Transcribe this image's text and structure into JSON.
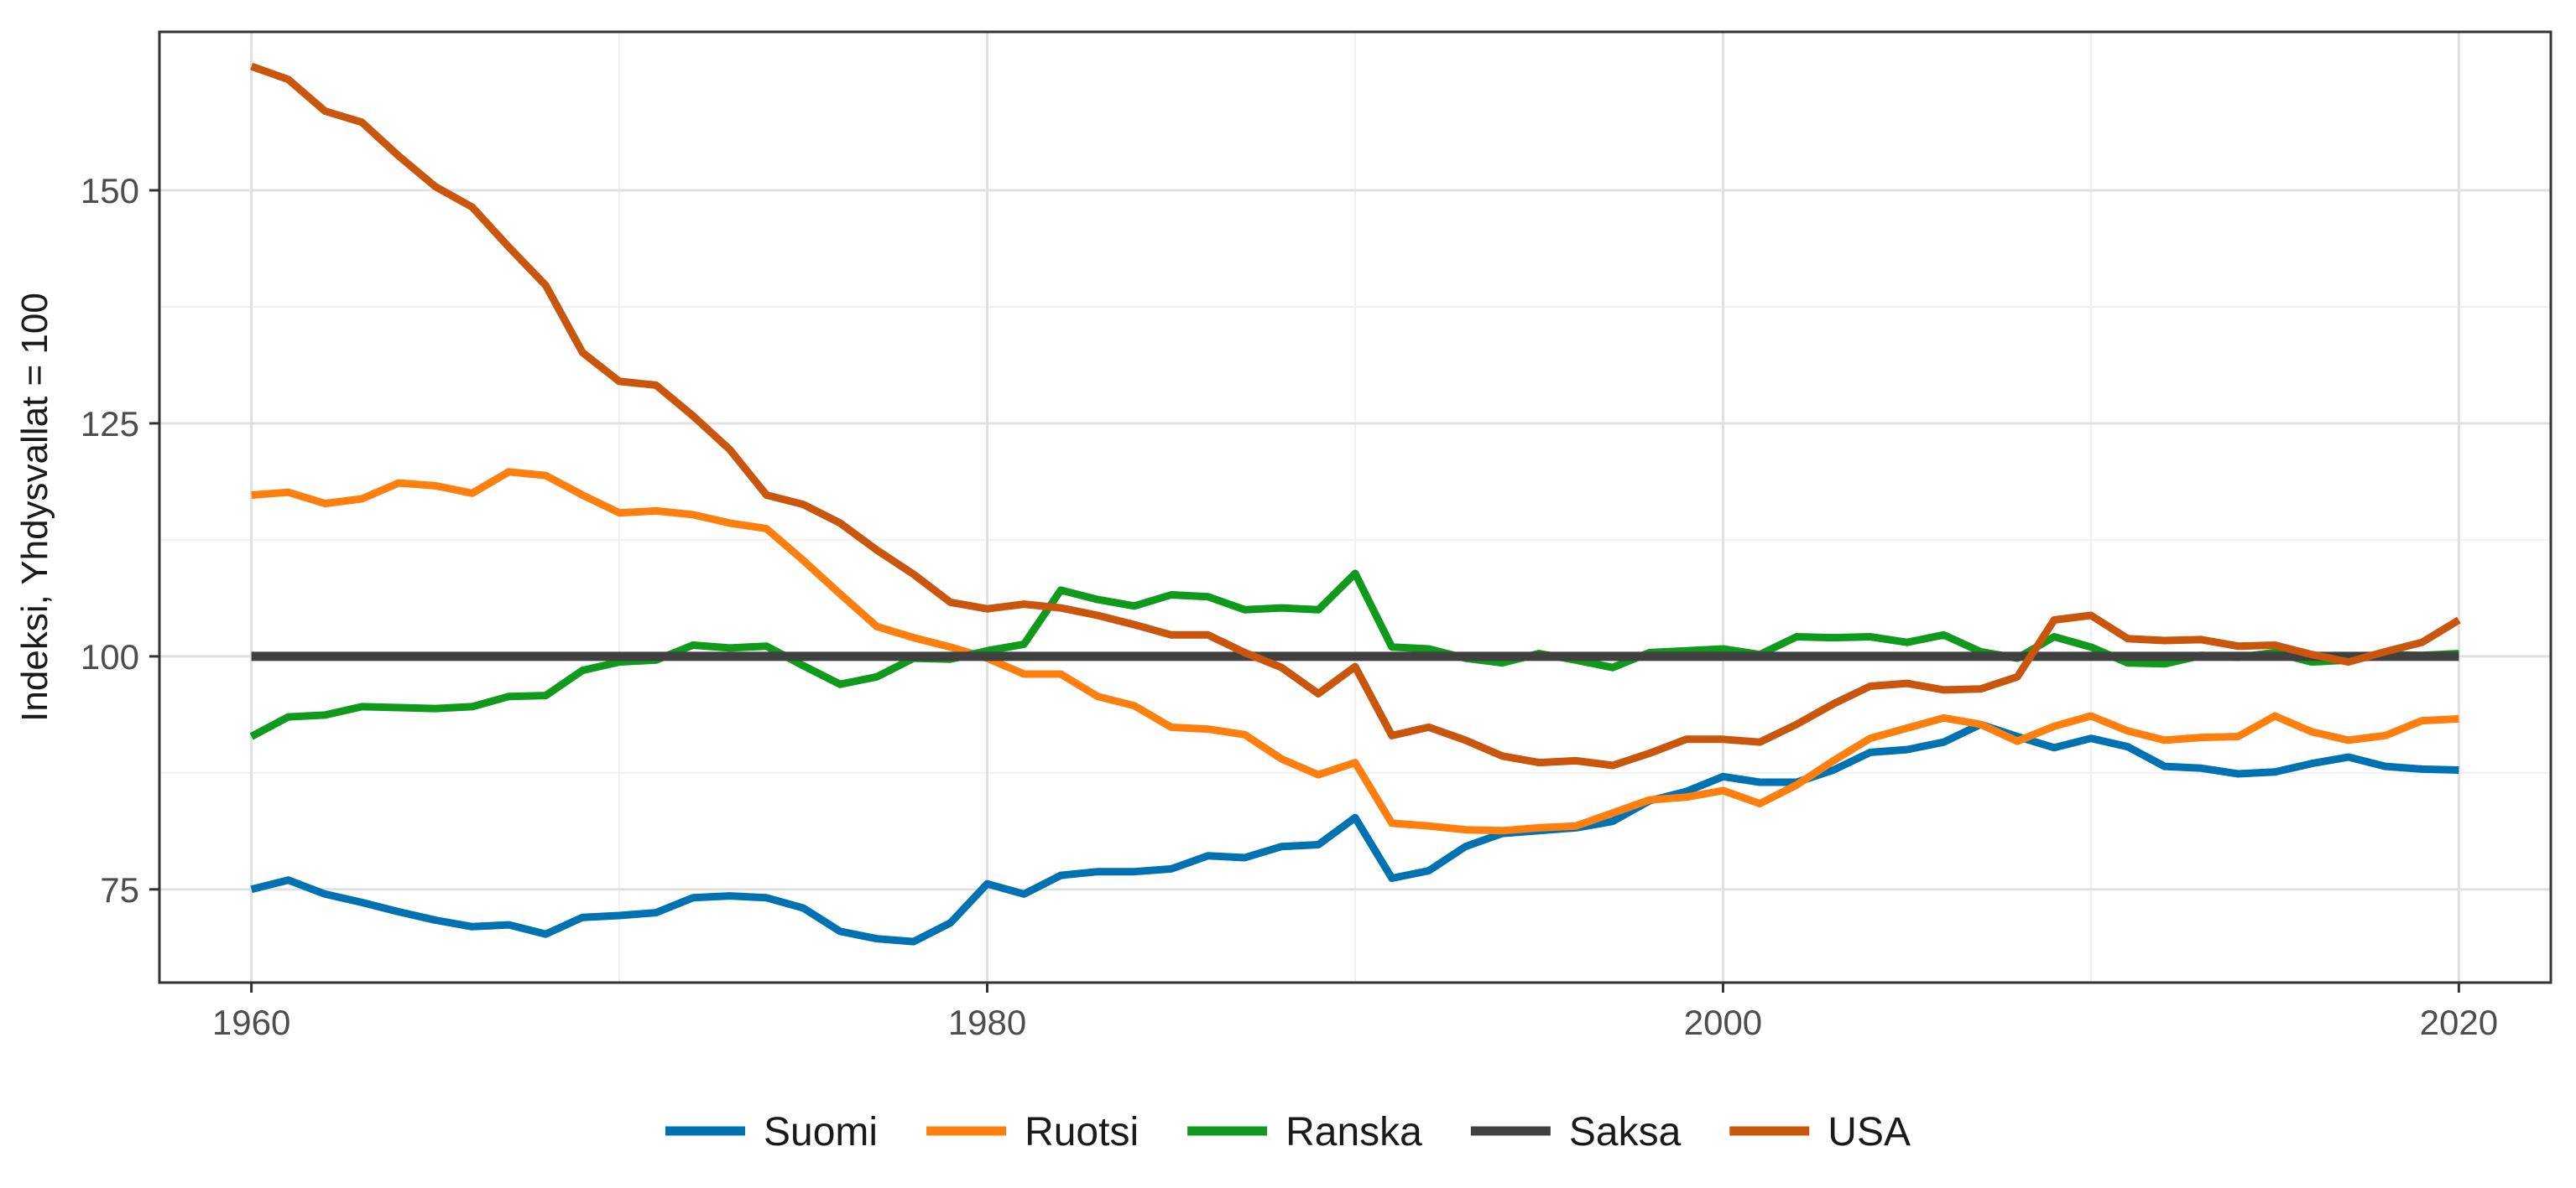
{
  "chart_data": {
    "type": "line",
    "ylabel": "Indeksi, Yhdysvallat = 100",
    "xlabel": "",
    "xlim": [
      1957.5,
      2022.5
    ],
    "ylim": [
      65,
      167
    ],
    "x_ticks": [
      1960,
      1980,
      2000,
      2020
    ],
    "y_ticks": [
      75,
      100,
      125,
      150
    ],
    "grid": true,
    "legend_position": "bottom",
    "x": [
      1960,
      1961,
      1962,
      1963,
      1964,
      1965,
      1966,
      1967,
      1968,
      1969,
      1970,
      1971,
      1972,
      1973,
      1974,
      1975,
      1976,
      1977,
      1978,
      1979,
      1980,
      1981,
      1982,
      1983,
      1984,
      1985,
      1986,
      1987,
      1988,
      1989,
      1990,
      1991,
      1992,
      1993,
      1994,
      1995,
      1996,
      1997,
      1998,
      1999,
      2000,
      2001,
      2002,
      2003,
      2004,
      2005,
      2006,
      2007,
      2008,
      2009,
      2010,
      2011,
      2012,
      2013,
      2014,
      2015,
      2016,
      2017,
      2018,
      2019,
      2020
    ],
    "series": [
      {
        "name": "Suomi",
        "color": "#0072b2",
        "values": [
          75,
          76,
          74.5,
          73.6,
          72.6,
          71.7,
          71,
          71.2,
          70.2,
          72,
          72.2,
          72.5,
          74.1,
          74.3,
          74.1,
          73,
          70.5,
          69.7,
          69.4,
          71.4,
          75.6,
          74.5,
          76.5,
          76.9,
          76.9,
          77.2,
          78.6,
          78.4,
          79.6,
          79.8,
          82.7,
          76.2,
          77,
          79.6,
          81,
          81.3,
          81.6,
          82.3,
          84.5,
          85.5,
          87.1,
          86.5,
          86.5,
          87.8,
          89.7,
          90,
          90.8,
          92.7,
          91.4,
          90.2,
          91.2,
          90.3,
          88.2,
          88,
          87.4,
          87.6,
          88.5,
          89.2,
          88.2,
          87.9,
          87.8
        ]
      },
      {
        "name": "Ruotsi",
        "color": "#ff7f0e",
        "values": [
          117.3,
          117.6,
          116.4,
          116.9,
          118.6,
          118.3,
          117.5,
          119.8,
          119.4,
          117.3,
          115.4,
          115.6,
          115.2,
          114.3,
          113.7,
          110.3,
          106.7,
          103.2,
          102,
          101,
          99.8,
          98.1,
          98.1,
          95.7,
          94.7,
          92.4,
          92.2,
          91.6,
          89,
          87.3,
          88.6,
          82.1,
          81.8,
          81.4,
          81.3,
          81.6,
          81.8,
          83.2,
          84.6,
          84.9,
          85.6,
          84.2,
          86.2,
          88.8,
          91.2,
          92.3,
          93.4,
          92.7,
          90.9,
          92.5,
          93.6,
          92,
          91,
          91.3,
          91.4,
          93.6,
          91.9,
          91,
          91.5,
          93.1,
          93.3
        ]
      },
      {
        "name": "Ranska",
        "color": "#109a1b",
        "values": [
          91.4,
          93.5,
          93.7,
          94.6,
          94.5,
          94.4,
          94.6,
          95.7,
          95.8,
          98.5,
          99.4,
          99.6,
          101.2,
          100.9,
          101.1,
          99,
          97,
          97.8,
          99.8,
          99.7,
          100.6,
          101.3,
          107.1,
          106.1,
          105.4,
          106.6,
          106.4,
          105,
          105.2,
          105,
          108.9,
          101,
          100.8,
          99.8,
          99.3,
          100.3,
          99.6,
          98.8,
          100.4,
          100.6,
          100.8,
          100.2,
          102.1,
          102,
          102.1,
          101.5,
          102.3,
          100.5,
          99.8,
          102.1,
          101,
          99.3,
          99.2,
          100.1,
          99.9,
          100.4,
          99.4,
          99.6,
          100.2,
          100.1,
          100.3
        ]
      },
      {
        "name": "Saksa",
        "color": "#404040",
        "values": [
          100,
          100,
          100,
          100,
          100,
          100,
          100,
          100,
          100,
          100,
          100,
          100,
          100,
          100,
          100,
          100,
          100,
          100,
          100,
          100,
          100,
          100,
          100,
          100,
          100,
          100,
          100,
          100,
          100,
          100,
          100,
          100,
          100,
          100,
          100,
          100,
          100,
          100,
          100,
          100,
          100,
          100,
          100,
          100,
          100,
          100,
          100,
          100,
          100,
          100,
          100,
          100,
          100,
          100,
          100,
          100,
          100,
          100,
          100,
          100,
          100
        ]
      },
      {
        "name": "USA",
        "color": "#c9560c",
        "values": [
          163.3,
          161.9,
          158.5,
          157.3,
          153.7,
          150.4,
          148.2,
          143.9,
          139.8,
          132.6,
          129.5,
          129.1,
          125.8,
          122.2,
          117.3,
          116.3,
          114.3,
          111.4,
          108.8,
          105.8,
          105.1,
          105.6,
          105.2,
          104.4,
          103.4,
          102.3,
          102.3,
          100.4,
          98.8,
          96,
          98.9,
          91.5,
          92.4,
          91,
          89.3,
          88.6,
          88.8,
          88.3,
          89.6,
          91.1,
          91.1,
          90.8,
          92.7,
          94.9,
          96.8,
          97.1,
          96.4,
          96.5,
          97.8,
          103.9,
          104.4,
          101.9,
          101.7,
          101.8,
          101.1,
          101.2,
          100.2,
          99.4,
          100.5,
          101.5,
          103.9
        ]
      }
    ]
  }
}
